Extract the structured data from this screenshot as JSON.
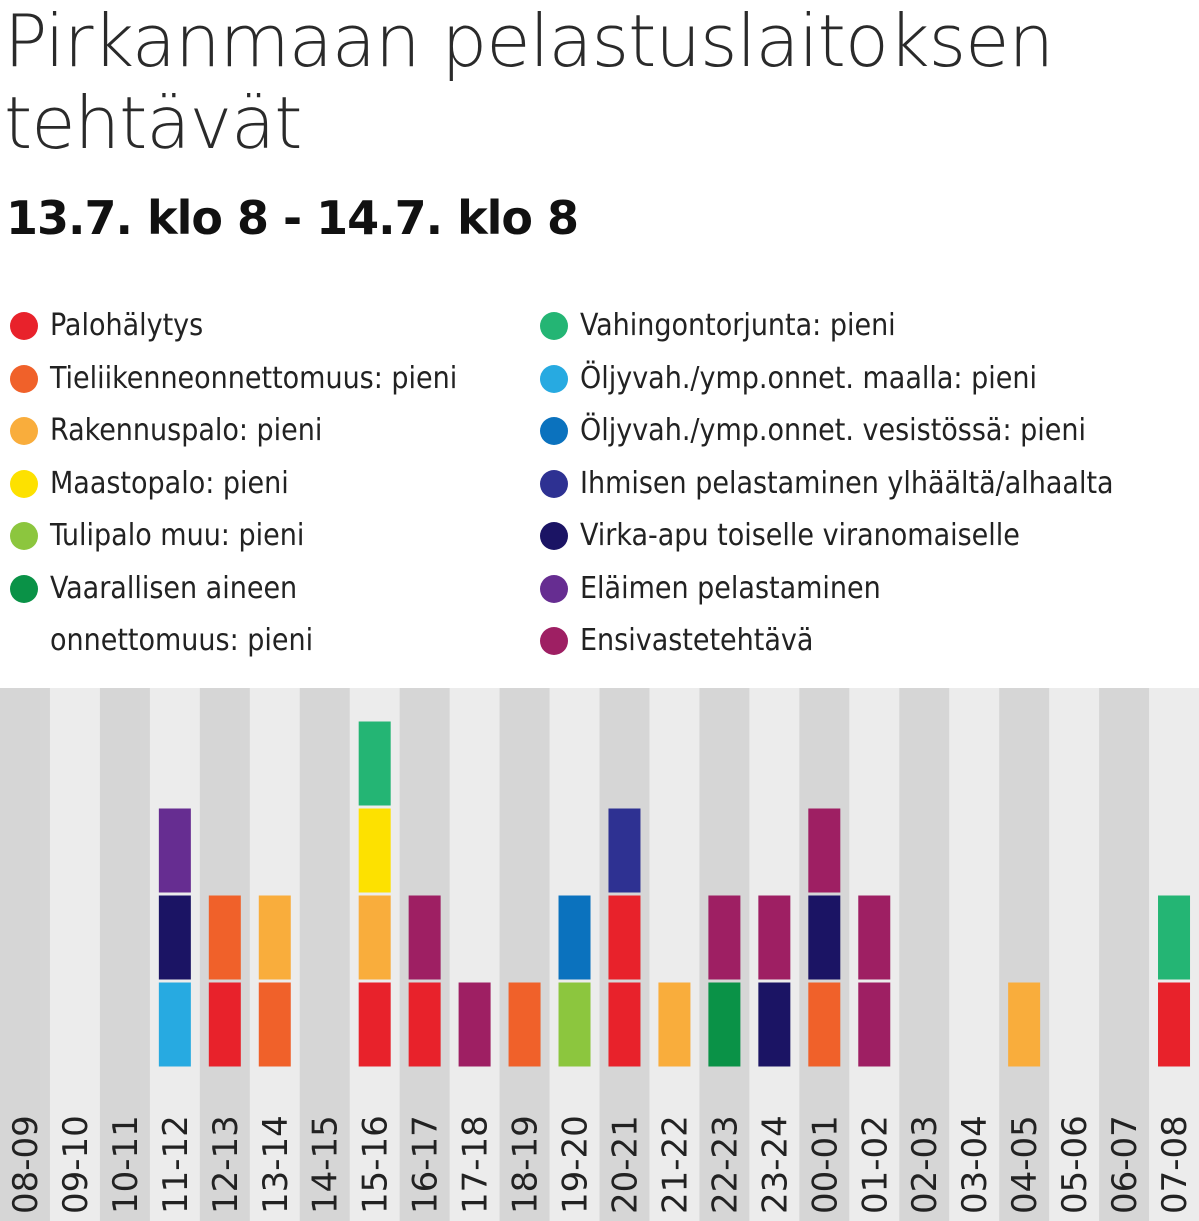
{
  "title": "Pirkanmaan pelastuslaitoksen tehtävät",
  "subtitle": "13.7. klo 8 - 14.7. klo 8",
  "legend_left": [
    {
      "key": "palohalytys",
      "label": "Palohälytys",
      "color": "#e8222b"
    },
    {
      "key": "tieliikenne",
      "label": "Tieliikenneonnettomuus: pieni",
      "color": "#f0612a"
    },
    {
      "key": "rakennuspalo",
      "label": "Rakennuspalo: pieni",
      "color": "#f9ad3c"
    },
    {
      "key": "maastopalo",
      "label": "Maastopalo: pieni",
      "color": "#fde100"
    },
    {
      "key": "tulipalo_muu",
      "label": "Tulipalo muu: pieni",
      "color": "#8cc63e"
    },
    {
      "key": "vaarallinen_aine",
      "label": "Vaarallisen aineen onnettomuus: pieni",
      "color": "#0a9247"
    }
  ],
  "legend_right": [
    {
      "key": "vahingontorjunta",
      "label": "Vahingontorjunta: pieni",
      "color": "#24b574"
    },
    {
      "key": "oljy_maalla",
      "label": "Öljyvah./ymp.onnet. maalla: pieni",
      "color": "#27aae1"
    },
    {
      "key": "oljy_vesi",
      "label": "Öljyvah./ymp.onnet. vesistössä: pieni",
      "color": "#0b72be"
    },
    {
      "key": "ihmisen_pelastaminen",
      "label": "Ihmisen pelastaminen ylhäältä/alhaalta",
      "color": "#2e3192"
    },
    {
      "key": "virka_apu",
      "label": "Virka-apu toiselle viranomaiselle",
      "color": "#1b1464"
    },
    {
      "key": "elaimen_pelastaminen",
      "label": "Eläimen pelastaminen",
      "color": "#662d91"
    },
    {
      "key": "ensivaste",
      "label": "Ensivastetehtävä",
      "color": "#9e1f63"
    }
  ],
  "chart_data": {
    "type": "bar",
    "stacked": true,
    "unit": "tehtävä",
    "categories": [
      "08-09",
      "09-10",
      "10-11",
      "11-12",
      "12-13",
      "13-14",
      "14-15",
      "15-16",
      "16-17",
      "17-18",
      "18-19",
      "19-20",
      "20-21",
      "21-22",
      "22-23",
      "23-24",
      "00-01",
      "01-02",
      "02-03",
      "03-04",
      "04-05",
      "05-06",
      "06-07",
      "07-08"
    ],
    "stacks": [
      [],
      [],
      [],
      [
        "oljy_maalla",
        "virka_apu",
        "elaimen_pelastaminen"
      ],
      [
        "palohalytys",
        "tieliikenne"
      ],
      [
        "tieliikenne",
        "rakennuspalo"
      ],
      [],
      [
        "palohalytys",
        "rakennuspalo",
        "maastopalo",
        "vahingontorjunta"
      ],
      [
        "palohalytys",
        "ensivaste"
      ],
      [
        "ensivaste"
      ],
      [
        "tieliikenne"
      ],
      [
        "tulipalo_muu",
        "oljy_vesi"
      ],
      [
        "palohalytys",
        "palohalytys",
        "ihmisen_pelastaminen"
      ],
      [
        "rakennuspalo"
      ],
      [
        "vaarallinen_aine",
        "ensivaste"
      ],
      [
        "virka_apu",
        "ensivaste"
      ],
      [
        "tieliikenne",
        "virka_apu",
        "ensivaste"
      ],
      [
        "ensivaste",
        "ensivaste"
      ],
      [],
      [],
      [
        "rakennuspalo"
      ],
      [],
      [],
      [
        "palohalytys",
        "vahingontorjunta"
      ]
    ],
    "totals": [
      0,
      0,
      0,
      3,
      2,
      2,
      0,
      4,
      2,
      1,
      1,
      2,
      3,
      1,
      2,
      2,
      3,
      2,
      0,
      0,
      1,
      0,
      0,
      2
    ],
    "grid": false
  }
}
